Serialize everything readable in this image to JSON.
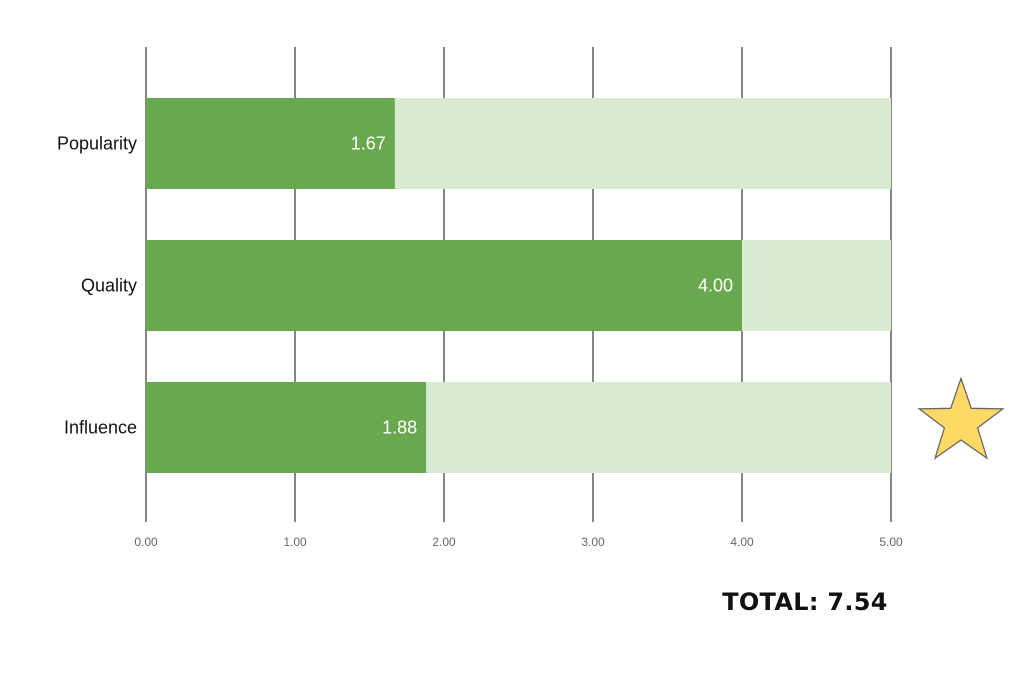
{
  "chart_data": {
    "type": "bar",
    "orientation": "horizontal",
    "categories": [
      "Popularity",
      "Quality",
      "Influence"
    ],
    "values": [
      1.67,
      4.0,
      1.88
    ],
    "value_labels": [
      "1.67",
      "4.00",
      "1.88"
    ],
    "xlim": [
      0,
      5
    ],
    "x_ticks": [
      0,
      1,
      2,
      3,
      4,
      5
    ],
    "x_tick_labels": [
      "0.00",
      "1.00",
      "2.00",
      "3.00",
      "4.00",
      "5.00"
    ],
    "grid": true,
    "track_max": 5,
    "highlighted_category": "Influence",
    "colors": {
      "bar": "#6aa84f",
      "track": "#d9ead3",
      "grid": "#444444",
      "star_fill": "#ffd966",
      "star_stroke": "#666666"
    }
  },
  "total_text": "TOTAL: 7.54",
  "icons": {
    "highlight_marker": "star-icon"
  }
}
